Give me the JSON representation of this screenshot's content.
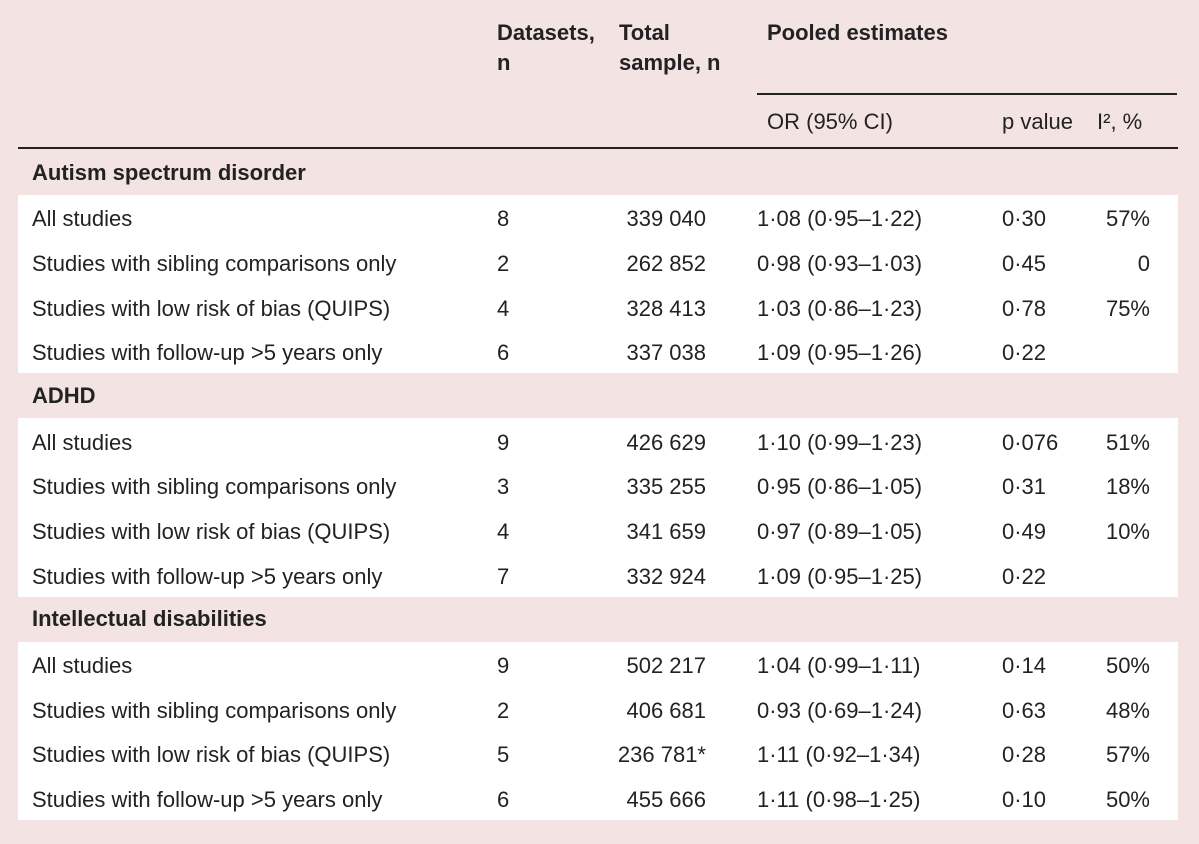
{
  "table": {
    "headers": {
      "datasets": "Datasets, n",
      "total": "Total sample, n",
      "pooled": "Pooled estimates",
      "or": "OR (95% CI)",
      "p": "p value",
      "i2": "I², %"
    },
    "sections": [
      {
        "title": "Autism spectrum disorder",
        "rows": [
          [
            "All studies",
            "8",
            "339 040",
            "1·08 (0·95–1·22)",
            "0·30",
            "57%"
          ],
          [
            "Studies with sibling comparisons only",
            "2",
            "262 852",
            "0·98 (0·93–1·03)",
            "0·45",
            "0"
          ],
          [
            "Studies with low risk of bias (QUIPS)",
            "4",
            "328 413",
            "1·03 (0·86–1·23)",
            "0·78",
            "75%"
          ],
          [
            "Studies with follow-up >5 years only",
            "6",
            "337 038",
            "1·09 (0·95–1·26)",
            "0·22",
            null
          ]
        ]
      },
      {
        "title": "ADHD",
        "rows": [
          [
            "All studies",
            "9",
            "426 629",
            "1·10 (0·99–1·23)",
            "0·076",
            "51%"
          ],
          [
            "Studies with sibling comparisons only",
            "3",
            "335 255",
            "0·95 (0·86–1·05)",
            "0·31",
            "18%"
          ],
          [
            "Studies with low risk of bias (QUIPS)",
            "4",
            "341 659",
            "0·97 (0·89–1·05)",
            "0·49",
            "10%"
          ],
          [
            "Studies with follow-up >5 years only",
            "7",
            "332 924",
            "1·09 (0·95–1·25)",
            "0·22",
            null
          ]
        ]
      },
      {
        "title": "Intellectual disabilities",
        "rows": [
          [
            "All studies",
            "9",
            "502 217",
            "1·04 (0·99–1·11)",
            "0·14",
            "50%"
          ],
          [
            "Studies with sibling comparisons only",
            "2",
            "406 681",
            "0·93 (0·69–1·24)",
            "0·63",
            "48%"
          ],
          [
            "Studies with low risk of bias (QUIPS)",
            "5",
            "236 781*",
            "1·11 (0·92–1·34)",
            "0·28",
            "57%"
          ],
          [
            "Studies with follow-up >5 years only",
            "6",
            "455 666",
            "1·11 (0·98–1·25)",
            "0·10",
            "50%"
          ]
        ]
      }
    ]
  }
}
